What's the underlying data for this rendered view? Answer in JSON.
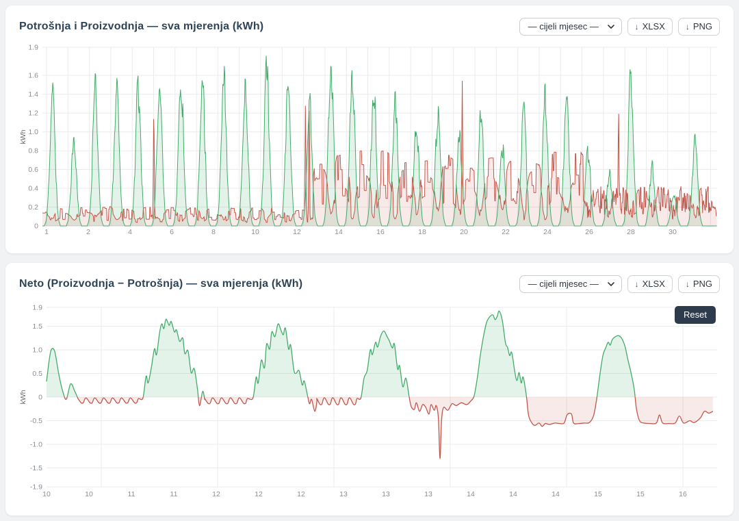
{
  "colors": {
    "production": "#43ab6a",
    "production_fill": "rgba(67,171,106,0.14)",
    "consumption": "#c4554a",
    "consumption_fill": "rgba(196,85,74,0.12)",
    "grid": "#ebebeb",
    "axis_line": "#d9d9d9",
    "axis_text": "#8a8f94",
    "title_text": "#2e4355",
    "reset_bg": "#2d3b4d"
  },
  "controls": {
    "period_selected": "— cijeli mjesec —",
    "download_icon": "↓",
    "xlsx_label": "XLSX",
    "png_label": "PNG",
    "reset_label": "Reset"
  },
  "panels": [
    {
      "title": "Potrošnja i Proizvodnja — sva mjerenja (kWh)"
    },
    {
      "title": "Neto (Proizvodnja − Potrošnja) — sva mjerenja (kWh)"
    }
  ],
  "chart_data": [
    {
      "type": "area",
      "title": "Potrošnja i Proizvodnja — sva mjerenja (kWh)",
      "ylabel": "kWh",
      "ylim": [
        0,
        1.9
      ],
      "xlim_days": [
        1,
        32.5
      ],
      "y_ticks": [
        {
          "v": 1.9,
          "label": "1.9"
        },
        {
          "v": 1.6,
          "label": "1.6"
        },
        {
          "v": 1.4,
          "label": "1.4"
        },
        {
          "v": 1.2,
          "label": "1.2"
        },
        {
          "v": 1.0,
          "label": "1.0"
        },
        {
          "v": 0.8,
          "label": "0.8"
        },
        {
          "v": 0.6,
          "label": "0.6"
        },
        {
          "v": 0.4,
          "label": "0.4"
        },
        {
          "v": 0.2,
          "label": "0.2"
        },
        {
          "v": 0,
          "label": "0"
        }
      ],
      "x_ticks": [
        "1",
        "2",
        "4",
        "6",
        "8",
        "10",
        "12",
        "14",
        "16",
        "18",
        "20",
        "22",
        "24",
        "26",
        "28",
        "30"
      ],
      "seed": 11,
      "series": [
        {
          "name": "Proizvodnja",
          "color_key": "production",
          "daily_peaks": [
            1.4,
            0.93,
            1.45,
            1.48,
            1.45,
            1.47,
            1.51,
            1.47,
            1.53,
            1.5,
            1.63,
            1.43,
            1.32,
            1.73,
            1.61,
            1.4,
            1.26,
            1.05,
            1.17,
            0.95,
            1.18,
            0.85,
            1.17,
            1.42,
            1.35,
            0.78,
            0.55,
            1.59,
            0.62,
            0.35,
            0.95
          ]
        },
        {
          "name": "Potrošnja",
          "color_key": "consumption",
          "base_levels": [
            [
              1,
              13.6,
              0.13
            ],
            [
              13.6,
              26.2,
              0.5
            ],
            [
              26.2,
              32.5,
              0.27
            ]
          ],
          "spikes": [
            [
              6.2,
              1.22
            ],
            [
              13.28,
              1.3
            ],
            [
              13.45,
              1.23
            ],
            [
              20.6,
              1.55
            ],
            [
              27.9,
              1.24
            ]
          ]
        }
      ]
    },
    {
      "type": "area",
      "title": "Neto (Proizvodnja − Potrošnja) — sva mjerenja (kWh)",
      "ylabel": "kWh",
      "ylim": [
        -1.9,
        1.9
      ],
      "xlim_days": [
        10,
        16.4
      ],
      "y_ticks": [
        {
          "v": 1.9,
          "label": "1.9"
        },
        {
          "v": 1.5,
          "label": "1.5"
        },
        {
          "v": 1.0,
          "label": "1.0"
        },
        {
          "v": 0.5,
          "label": "0.5"
        },
        {
          "v": 0,
          "label": "0"
        },
        {
          "v": -0.5,
          "label": "-0.5"
        },
        {
          "v": -1.0,
          "label": "-1.0"
        },
        {
          "v": -1.5,
          "label": "-1.5"
        },
        {
          "v": -1.9,
          "label": "-1.9"
        }
      ],
      "x_ticks": [
        "10",
        "10",
        "11",
        "11",
        "12",
        "12",
        "12",
        "13",
        "13",
        "13",
        "14",
        "14",
        "14",
        "15",
        "15",
        "16"
      ],
      "positive_color_key": "production",
      "negative_color_key": "consumption",
      "segments": [
        {
          "pts": [
            [
              10.0,
              0.33
            ],
            [
              10.03,
              0.85
            ],
            [
              10.05,
              1.02
            ],
            [
              10.08,
              0.95
            ],
            [
              10.12,
              0.45
            ],
            [
              10.16,
              0.08
            ],
            [
              10.19,
              -0.04
            ],
            [
              10.23,
              0.28
            ],
            [
              10.27,
              0.12
            ],
            [
              10.3,
              -0.03
            ]
          ]
        },
        {
          "night": [
            10.3,
            10.92,
            -0.12,
            0.085
          ]
        },
        {
          "pts": [
            [
              10.92,
              -0.02
            ],
            [
              10.95,
              0.44
            ],
            [
              10.97,
              0.3
            ],
            [
              11.0,
              0.62
            ],
            [
              11.03,
              1.02
            ],
            [
              11.05,
              0.9
            ],
            [
              11.08,
              1.38
            ],
            [
              11.1,
              1.55
            ],
            [
              11.12,
              1.45
            ],
            [
              11.14,
              1.65
            ],
            [
              11.17,
              1.52
            ],
            [
              11.19,
              1.6
            ],
            [
              11.22,
              1.38
            ],
            [
              11.24,
              1.42
            ],
            [
              11.27,
              1.18
            ],
            [
              11.3,
              1.25
            ],
            [
              11.32,
              0.92
            ],
            [
              11.35,
              0.98
            ],
            [
              11.38,
              0.52
            ],
            [
              11.41,
              0.6
            ],
            [
              11.44,
              0.18
            ],
            [
              11.46,
              -0.18
            ],
            [
              11.49,
              0.12
            ],
            [
              11.51,
              -0.05
            ]
          ]
        },
        {
          "night": [
            11.51,
            11.97,
            -0.13,
            0.085
          ]
        },
        {
          "pts": [
            [
              11.97,
              -0.02
            ],
            [
              12.0,
              0.42
            ],
            [
              12.02,
              0.3
            ],
            [
              12.05,
              0.78
            ],
            [
              12.08,
              0.62
            ],
            [
              12.1,
              1.12
            ],
            [
              12.13,
              1.02
            ],
            [
              12.15,
              1.38
            ],
            [
              12.18,
              1.28
            ],
            [
              12.21,
              1.55
            ],
            [
              12.24,
              1.4
            ],
            [
              12.26,
              1.32
            ],
            [
              12.28,
              1.46
            ],
            [
              12.31,
              1.02
            ],
            [
              12.33,
              1.1
            ],
            [
              12.36,
              0.58
            ],
            [
              12.38,
              0.5
            ],
            [
              12.41,
              0.56
            ],
            [
              12.44,
              0.26
            ],
            [
              12.46,
              0.34
            ],
            [
              12.49,
              0.04
            ],
            [
              12.51,
              -0.14
            ],
            [
              12.53,
              -0.05
            ],
            [
              12.56,
              -0.3
            ],
            [
              12.58,
              -0.1
            ]
          ]
        },
        {
          "night": [
            12.58,
            13.0,
            -0.15,
            0.08
          ]
        },
        {
          "pts": [
            [
              13.0,
              -0.02
            ],
            [
              13.03,
              0.4
            ],
            [
              13.06,
              0.56
            ],
            [
              13.09,
              1.0
            ],
            [
              13.11,
              0.9
            ],
            [
              13.14,
              1.16
            ],
            [
              13.16,
              1.06
            ],
            [
              13.19,
              1.3
            ],
            [
              13.22,
              1.4
            ],
            [
              13.25,
              1.28
            ],
            [
              13.27,
              1.2
            ],
            [
              13.3,
              1.04
            ],
            [
              13.32,
              1.12
            ],
            [
              13.35,
              0.6
            ],
            [
              13.37,
              0.66
            ],
            [
              13.4,
              0.22
            ],
            [
              13.43,
              0.4
            ],
            [
              13.46,
              0.02
            ]
          ]
        },
        {
          "pts": [
            [
              13.48,
              -0.2
            ],
            [
              13.51,
              -0.26
            ],
            [
              13.53,
              -0.12
            ],
            [
              13.56,
              -0.3
            ],
            [
              13.59,
              -0.16
            ],
            [
              13.62,
              -0.22
            ],
            [
              13.65,
              -0.36
            ],
            [
              13.67,
              -0.16
            ],
            [
              13.7,
              -0.28
            ],
            [
              13.72,
              -0.18
            ],
            [
              13.74,
              -0.45
            ],
            [
              13.755,
              -1.3
            ],
            [
              13.77,
              -0.5
            ],
            [
              13.79,
              -0.22
            ],
            [
              13.83,
              -0.28
            ],
            [
              13.87,
              -0.14
            ],
            [
              13.91,
              -0.18
            ],
            [
              13.96,
              -0.12
            ],
            [
              14.01,
              -0.16
            ],
            [
              14.05,
              -0.08
            ]
          ]
        },
        {
          "pts": [
            [
              14.08,
              0.02
            ],
            [
              14.11,
              0.38
            ],
            [
              14.14,
              0.88
            ],
            [
              14.17,
              1.28
            ],
            [
              14.2,
              1.58
            ],
            [
              14.23,
              1.7
            ],
            [
              14.26,
              1.74
            ],
            [
              14.28,
              1.64
            ],
            [
              14.3,
              1.7
            ],
            [
              14.32,
              1.82
            ],
            [
              14.35,
              1.62
            ],
            [
              14.38,
              1.15
            ],
            [
              14.4,
              1.05
            ],
            [
              14.42,
              0.88
            ],
            [
              14.44,
              0.94
            ],
            [
              14.47,
              0.52
            ],
            [
              14.49,
              0.35
            ],
            [
              14.51,
              0.52
            ],
            [
              14.53,
              0.3
            ],
            [
              14.55,
              0.42
            ],
            [
              14.58,
              0.02
            ]
          ]
        },
        {
          "pts": [
            [
              14.6,
              -0.38
            ],
            [
              14.63,
              -0.54
            ],
            [
              14.66,
              -0.6
            ],
            [
              14.7,
              -0.55
            ],
            [
              14.73,
              -0.62
            ],
            [
              14.76,
              -0.56
            ],
            [
              14.8,
              -0.58
            ],
            [
              14.85,
              -0.55
            ],
            [
              14.9,
              -0.56
            ],
            [
              14.94,
              -0.55
            ],
            [
              14.97,
              -0.37
            ],
            [
              15.01,
              -0.36
            ],
            [
              15.03,
              -0.55
            ],
            [
              15.08,
              -0.56
            ],
            [
              15.13,
              -0.55
            ],
            [
              15.18,
              -0.54
            ],
            [
              15.22,
              -0.4
            ]
          ]
        },
        {
          "pts": [
            [
              15.25,
              -0.05
            ],
            [
              15.28,
              0.45
            ],
            [
              15.31,
              0.88
            ],
            [
              15.34,
              1.06
            ],
            [
              15.36,
              1.16
            ],
            [
              15.38,
              1.1
            ],
            [
              15.4,
              1.22
            ],
            [
              15.43,
              1.28
            ],
            [
              15.46,
              1.3
            ],
            [
              15.49,
              1.24
            ],
            [
              15.52,
              1.08
            ],
            [
              15.55,
              0.78
            ],
            [
              15.58,
              0.5
            ],
            [
              15.61,
              0.15
            ],
            [
              15.63,
              -0.25
            ]
          ]
        },
        {
          "pts": [
            [
              15.66,
              -0.5
            ],
            [
              15.7,
              -0.55
            ],
            [
              15.76,
              -0.56
            ],
            [
              15.82,
              -0.55
            ],
            [
              15.85,
              -0.38
            ],
            [
              15.88,
              -0.55
            ],
            [
              15.94,
              -0.56
            ],
            [
              16.0,
              -0.55
            ],
            [
              16.04,
              -0.4
            ],
            [
              16.08,
              -0.55
            ],
            [
              16.14,
              -0.5
            ],
            [
              16.18,
              -0.54
            ],
            [
              16.24,
              -0.44
            ],
            [
              16.28,
              -0.3
            ],
            [
              16.32,
              -0.34
            ],
            [
              16.36,
              -0.3
            ]
          ]
        }
      ]
    }
  ]
}
